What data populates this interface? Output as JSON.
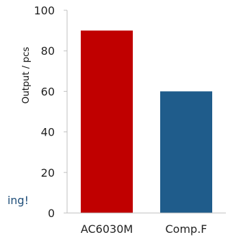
{
  "chart_data": {
    "type": "bar",
    "categories": [
      "AC6030M",
      "Comp.F"
    ],
    "values": [
      90,
      60
    ],
    "ylabel": "Output / pcs",
    "ylim": [
      0,
      100
    ],
    "yticks": [
      0,
      20,
      40,
      60,
      80,
      100
    ],
    "grid": false,
    "bar_colors": [
      "#c00000",
      "#1f5c8b"
    ]
  },
  "annotation": {
    "text": "ing!"
  },
  "colors": {
    "axis": "#bfbfbf",
    "annotation": "#1f4e79"
  }
}
